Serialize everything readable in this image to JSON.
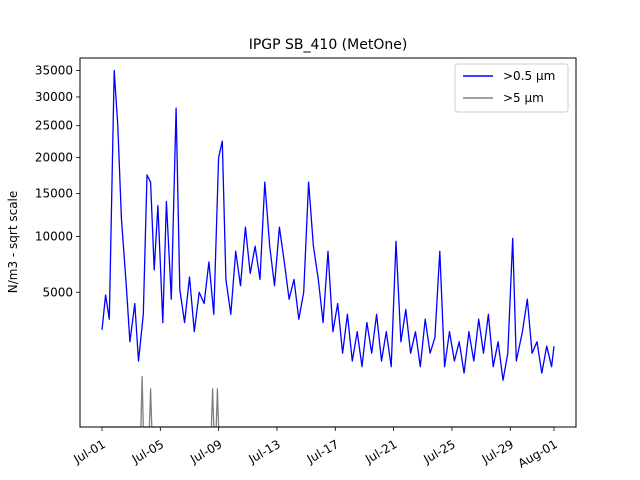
{
  "chart_data": {
    "type": "line",
    "title": "IPGP SB_410 (MetOne)",
    "xlabel": "",
    "ylabel": "N/m3 - sqrt scale",
    "y_scale": "sqrt",
    "xlim": [
      "2023-07-01",
      "2023-08-01"
    ],
    "ylim": [
      0,
      37500
    ],
    "x_ticks": [
      "Jul-01",
      "Jul-05",
      "Jul-09",
      "Jul-13",
      "Jul-17",
      "Jul-21",
      "Jul-25",
      "Jul-29",
      "Aug-01"
    ],
    "x_tick_dates": [
      "2023-07-01",
      "2023-07-05",
      "2023-07-09",
      "2023-07-13",
      "2023-07-17",
      "2023-07-21",
      "2023-07-25",
      "2023-07-29",
      "2023-08-01"
    ],
    "y_ticks": [
      5000,
      10000,
      15000,
      20000,
      25000,
      30000,
      35000
    ],
    "y_tick_labels": [
      "5000",
      "10000",
      "15000",
      "20000",
      "25000",
      "30000",
      "35000"
    ],
    "legend": {
      "position": "top-right"
    },
    "grid": false,
    "series": [
      {
        "name": ">0.5 µm",
        "color": "#0000ff",
        "points": [
          [
            "2023-07-01 00:00",
            2600
          ],
          [
            "2023-07-01 06:00",
            4800
          ],
          [
            "2023-07-01 12:00",
            3200
          ],
          [
            "2023-07-01 20:00",
            35000
          ],
          [
            "2023-07-02 02:00",
            25000
          ],
          [
            "2023-07-02 08:00",
            12000
          ],
          [
            "2023-07-02 16:00",
            5500
          ],
          [
            "2023-07-02 22:00",
            2000
          ],
          [
            "2023-07-03 06:00",
            4200
          ],
          [
            "2023-07-03 12:00",
            1200
          ],
          [
            "2023-07-03 20:00",
            3500
          ],
          [
            "2023-07-04 02:00",
            17500
          ],
          [
            "2023-07-04 08:00",
            16500
          ],
          [
            "2023-07-04 14:00",
            6800
          ],
          [
            "2023-07-04 20:00",
            13500
          ],
          [
            "2023-07-05 04:00",
            3000
          ],
          [
            "2023-07-05 10:00",
            14000
          ],
          [
            "2023-07-05 18:00",
            4500
          ],
          [
            "2023-07-06 02:00",
            28000
          ],
          [
            "2023-07-06 08:00",
            5200
          ],
          [
            "2023-07-06 16:00",
            3000
          ],
          [
            "2023-07-07 00:00",
            6200
          ],
          [
            "2023-07-07 08:00",
            2500
          ],
          [
            "2023-07-07 16:00",
            5000
          ],
          [
            "2023-07-08 00:00",
            4200
          ],
          [
            "2023-07-08 08:00",
            7500
          ],
          [
            "2023-07-08 16:00",
            3500
          ],
          [
            "2023-07-09 00:00",
            20000
          ],
          [
            "2023-07-09 06:00",
            22500
          ],
          [
            "2023-07-09 12:00",
            6000
          ],
          [
            "2023-07-09 20:00",
            3500
          ],
          [
            "2023-07-10 04:00",
            8500
          ],
          [
            "2023-07-10 12:00",
            5500
          ],
          [
            "2023-07-10 20:00",
            11000
          ],
          [
            "2023-07-11 04:00",
            6500
          ],
          [
            "2023-07-11 12:00",
            9000
          ],
          [
            "2023-07-11 20:00",
            6000
          ],
          [
            "2023-07-12 04:00",
            16500
          ],
          [
            "2023-07-12 12:00",
            9000
          ],
          [
            "2023-07-12 20:00",
            5500
          ],
          [
            "2023-07-13 04:00",
            11000
          ],
          [
            "2023-07-13 12:00",
            7500
          ],
          [
            "2023-07-13 20:00",
            4500
          ],
          [
            "2023-07-14 04:00",
            6000
          ],
          [
            "2023-07-14 12:00",
            3200
          ],
          [
            "2023-07-14 20:00",
            5000
          ],
          [
            "2023-07-15 04:00",
            16500
          ],
          [
            "2023-07-15 12:00",
            9000
          ],
          [
            "2023-07-15 20:00",
            6000
          ],
          [
            "2023-07-16 04:00",
            3000
          ],
          [
            "2023-07-16 12:00",
            8500
          ],
          [
            "2023-07-16 20:00",
            2500
          ],
          [
            "2023-07-17 04:00",
            4200
          ],
          [
            "2023-07-17 12:00",
            1500
          ],
          [
            "2023-07-17 20:00",
            3500
          ],
          [
            "2023-07-18 04:00",
            1200
          ],
          [
            "2023-07-18 12:00",
            2500
          ],
          [
            "2023-07-18 20:00",
            1000
          ],
          [
            "2023-07-19 04:00",
            3000
          ],
          [
            "2023-07-19 12:00",
            1500
          ],
          [
            "2023-07-19 20:00",
            3500
          ],
          [
            "2023-07-20 04:00",
            1200
          ],
          [
            "2023-07-20 12:00",
            2500
          ],
          [
            "2023-07-20 20:00",
            1000
          ],
          [
            "2023-07-21 04:00",
            9500
          ],
          [
            "2023-07-21 12:00",
            2000
          ],
          [
            "2023-07-21 20:00",
            3800
          ],
          [
            "2023-07-22 04:00",
            1500
          ],
          [
            "2023-07-22 12:00",
            2500
          ],
          [
            "2023-07-22 20:00",
            1000
          ],
          [
            "2023-07-23 04:00",
            3200
          ],
          [
            "2023-07-23 12:00",
            1500
          ],
          [
            "2023-07-23 20:00",
            2200
          ],
          [
            "2023-07-24 04:00",
            8500
          ],
          [
            "2023-07-24 12:00",
            1000
          ],
          [
            "2023-07-24 20:00",
            2500
          ],
          [
            "2023-07-25 04:00",
            1200
          ],
          [
            "2023-07-25 12:00",
            2000
          ],
          [
            "2023-07-25 20:00",
            800
          ],
          [
            "2023-07-26 04:00",
            2500
          ],
          [
            "2023-07-26 12:00",
            1200
          ],
          [
            "2023-07-26 20:00",
            3200
          ],
          [
            "2023-07-27 04:00",
            1500
          ],
          [
            "2023-07-27 12:00",
            3500
          ],
          [
            "2023-07-27 20:00",
            1000
          ],
          [
            "2023-07-28 04:00",
            2000
          ],
          [
            "2023-07-28 12:00",
            600
          ],
          [
            "2023-07-28 20:00",
            1500
          ],
          [
            "2023-07-29 04:00",
            9800
          ],
          [
            "2023-07-29 10:00",
            1200
          ],
          [
            "2023-07-29 20:00",
            2500
          ],
          [
            "2023-07-30 04:00",
            4500
          ],
          [
            "2023-07-30 12:00",
            1500
          ],
          [
            "2023-07-30 20:00",
            2000
          ],
          [
            "2023-07-31 04:00",
            800
          ],
          [
            "2023-07-31 12:00",
            1800
          ],
          [
            "2023-07-31 20:00",
            1000
          ],
          [
            "2023-08-01 00:00",
            1800
          ]
        ]
      },
      {
        "name": ">5 µm",
        "color": "#808080",
        "points": [
          [
            "2023-07-01 00:00",
            0
          ],
          [
            "2023-07-03 16:00",
            0
          ],
          [
            "2023-07-03 18:00",
            700
          ],
          [
            "2023-07-03 20:00",
            0
          ],
          [
            "2023-07-04 06:00",
            0
          ],
          [
            "2023-07-04 08:00",
            400
          ],
          [
            "2023-07-04 10:00",
            0
          ],
          [
            "2023-07-08 12:00",
            0
          ],
          [
            "2023-07-08 14:00",
            400
          ],
          [
            "2023-07-08 16:00",
            0
          ],
          [
            "2023-07-08 20:00",
            0
          ],
          [
            "2023-07-08 22:00",
            400
          ],
          [
            "2023-07-09 00:00",
            0
          ],
          [
            "2023-08-01 00:00",
            0
          ]
        ]
      }
    ]
  }
}
